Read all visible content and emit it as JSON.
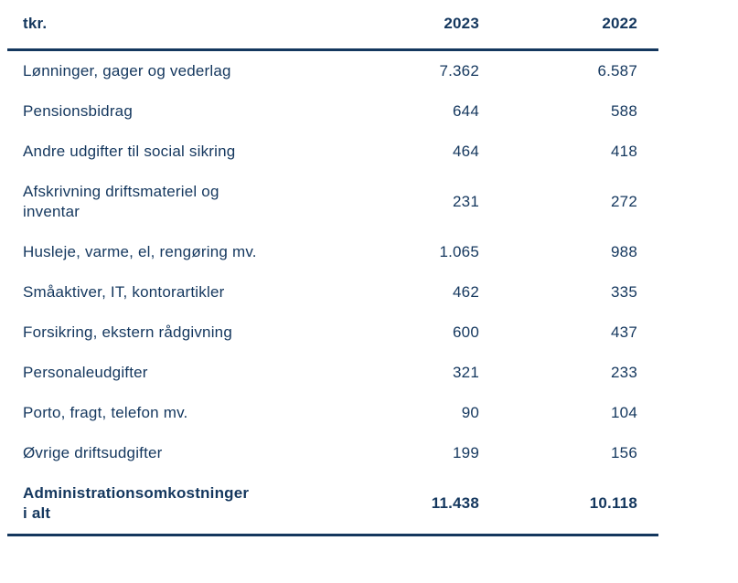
{
  "colors": {
    "text": "#14375e",
    "rule": "#14375e",
    "background": "#ffffff"
  },
  "table": {
    "unit_header": "tkr.",
    "columns": {
      "col1": "2023",
      "col2": "2022"
    },
    "rows": [
      {
        "label": "Lønninger, gager og vederlag",
        "v2023": "7.362",
        "v2022": "6.587"
      },
      {
        "label": "Pensionsbidrag",
        "v2023": "644",
        "v2022": "588"
      },
      {
        "label": "Andre udgifter til social sikring",
        "v2023": "464",
        "v2022": "418"
      },
      {
        "label": "Afskrivning driftsmateriel og\ninventar",
        "v2023": "231",
        "v2022": "272"
      },
      {
        "label": "Husleje, varme, el, rengøring mv.",
        "v2023": "1.065",
        "v2022": "988"
      },
      {
        "label": "Småaktiver, IT, kontorartikler",
        "v2023": "462",
        "v2022": "335"
      },
      {
        "label": "Forsikring, ekstern rådgivning",
        "v2023": "600",
        "v2022": "437"
      },
      {
        "label": "Personaleudgifter",
        "v2023": "321",
        "v2022": "233"
      },
      {
        "label": "Porto, fragt, telefon mv.",
        "v2023": "90",
        "v2022": "104"
      },
      {
        "label": "Øvrige driftsudgifter",
        "v2023": "199",
        "v2022": "156"
      }
    ],
    "total": {
      "label": "Administrationsomkostninger\ni alt",
      "v2023": "11.438",
      "v2022": "10.118"
    }
  }
}
